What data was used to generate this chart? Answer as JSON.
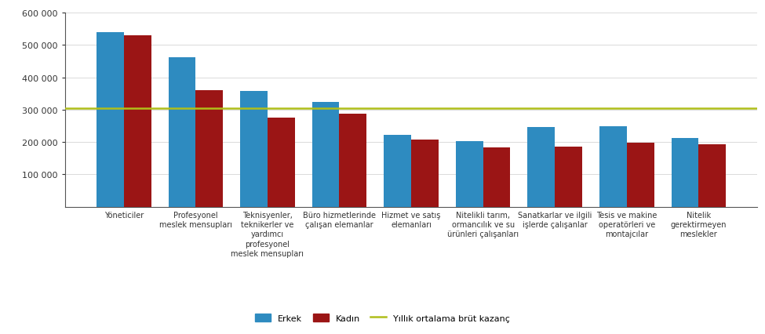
{
  "categories": [
    "Yöneticiler",
    "Profesyonel\nmeslek mensupları",
    "Teknisyenler,\nteknikerler ve\nyardımcı\nprofesyonel\nmeslek mensupları",
    "Büro hizmetlerinde\nçalışan elemanlar",
    "Hizmet ve satış\nelemanları",
    "Nitelikli tarım,\normancılık ve su\nürünleri çalışanları",
    "Sanatkarlar ve ilgili\nişlerde çalışanlar",
    "Tesis ve makine\noperatörleri ve\nmontajcılar",
    "Nitelik\ngerektirmeyen\nmeslekler"
  ],
  "erkek": [
    540000,
    462000,
    357000,
    323000,
    222000,
    204000,
    246000,
    250000,
    212000
  ],
  "kadin": [
    530000,
    360000,
    276000,
    288000,
    208000,
    184000,
    186000,
    197000,
    193000
  ],
  "average_line": 305000,
  "erkek_color": "#2e8bc0",
  "kadin_color": "#9b1515",
  "avg_color": "#b0be1a",
  "bar_width": 0.38,
  "ylim": [
    0,
    600000
  ],
  "yticks": [
    100000,
    200000,
    300000,
    400000,
    500000,
    600000
  ],
  "legend_erkek": "Erkek",
  "legend_kadin": "Kadın",
  "legend_avg": "Yıllık ortalama brüt kazanç",
  "bg_color": "#ffffff",
  "spine_color": "#555555",
  "grid_color": "#cccccc"
}
